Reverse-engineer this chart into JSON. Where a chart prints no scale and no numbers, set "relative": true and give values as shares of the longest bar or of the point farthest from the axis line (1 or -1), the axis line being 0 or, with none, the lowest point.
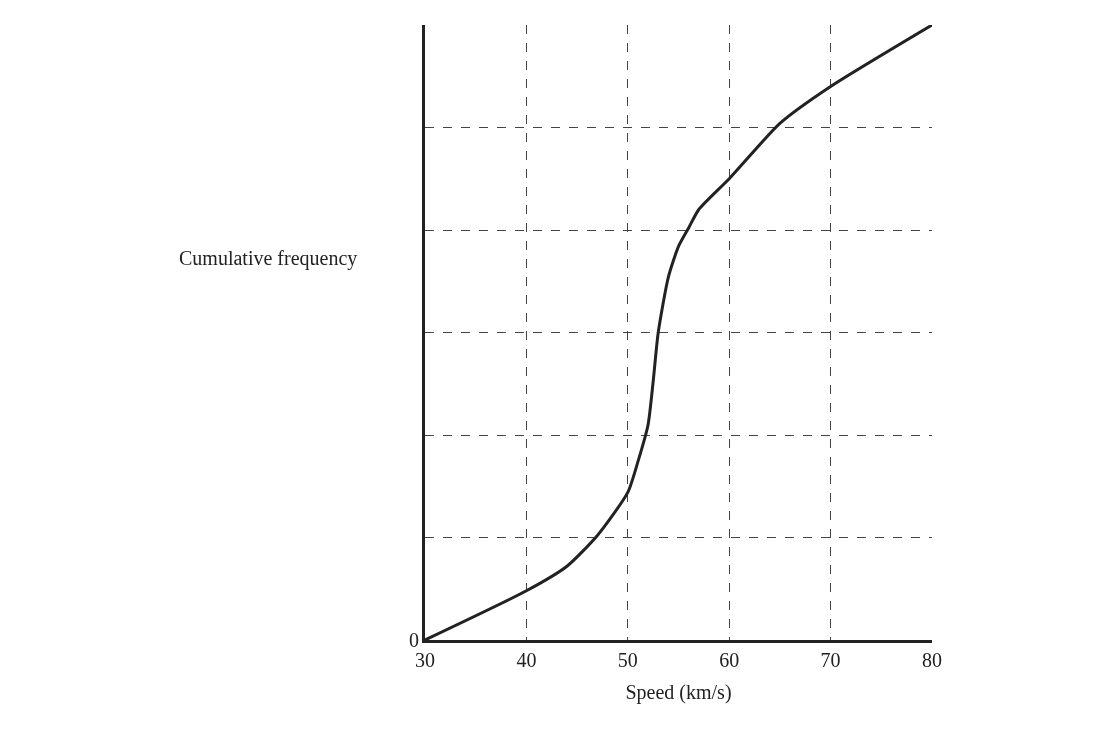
{
  "chart_data": {
    "type": "line",
    "relative": true,
    "xlabel": "Speed (km/s)",
    "ylabel": "Cumulative frequency",
    "x": [
      30,
      40,
      44,
      47,
      50,
      51,
      52,
      52.5,
      53,
      54,
      55,
      56,
      57,
      60,
      65,
      70,
      80
    ],
    "series": [
      {
        "color": "#222222",
        "values": [
          0,
          0.08,
          0.12,
          0.17,
          0.24,
          0.29,
          0.35,
          0.42,
          0.5,
          0.59,
          0.64,
          0.67,
          0.7,
          0.75,
          0.84,
          0.9,
          1
        ]
      }
    ],
    "xlim": [
      30,
      80
    ],
    "xticks": [
      30,
      40,
      50,
      60,
      70,
      80
    ],
    "grid": true,
    "marker": "none",
    "line_style": "solid",
    "annotations": [
      {
        "text": "0",
        "x": 30,
        "y": 0
      }
    ]
  }
}
